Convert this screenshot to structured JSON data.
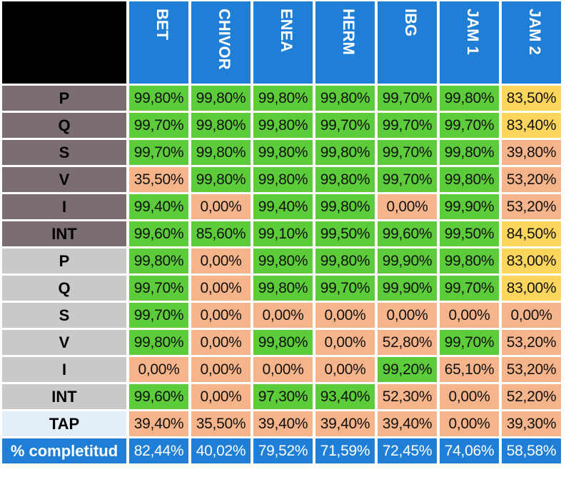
{
  "columns": [
    "BET",
    "CHIVOR",
    "ENEA",
    "HERM",
    "IBG",
    "JAM 1",
    "JAM 2"
  ],
  "colors": {
    "green": "#5ccc3a",
    "orange": "#f6b48b",
    "yellow": "#fcd65c",
    "blue": "#1f7fd6",
    "dark_label": "#7a6e70",
    "light_label": "#c9c9c9",
    "tap_label": "#e4eef8"
  },
  "rows": [
    {
      "label": "P",
      "group": "dark",
      "values": [
        "99,80%",
        "99,80%",
        "99,80%",
        "99,80%",
        "99,70%",
        "99,80%",
        "83,50%"
      ],
      "colors": [
        "g",
        "g",
        "g",
        "g",
        "g",
        "g",
        "y"
      ]
    },
    {
      "label": "Q",
      "group": "dark",
      "values": [
        "99,70%",
        "99,80%",
        "99,80%",
        "99,70%",
        "99,70%",
        "99,70%",
        "83,40%"
      ],
      "colors": [
        "g",
        "g",
        "g",
        "g",
        "g",
        "g",
        "y"
      ]
    },
    {
      "label": "S",
      "group": "dark",
      "values": [
        "99,70%",
        "99,80%",
        "99,80%",
        "99,80%",
        "99,70%",
        "99,80%",
        "39,80%"
      ],
      "colors": [
        "g",
        "g",
        "g",
        "g",
        "g",
        "g",
        "o"
      ]
    },
    {
      "label": "V",
      "group": "dark",
      "values": [
        "35,50%",
        "99,80%",
        "99,80%",
        "99,80%",
        "99,70%",
        "99,80%",
        "53,20%"
      ],
      "colors": [
        "o",
        "g",
        "g",
        "g",
        "g",
        "g",
        "o"
      ]
    },
    {
      "label": "I",
      "group": "dark",
      "values": [
        "99,40%",
        "0,00%",
        "99,40%",
        "99,80%",
        "0,00%",
        "99,90%",
        "53,20%"
      ],
      "colors": [
        "g",
        "o",
        "g",
        "g",
        "o",
        "g",
        "o"
      ]
    },
    {
      "label": "INT",
      "group": "dark",
      "values": [
        "99,60%",
        "85,60%",
        "99,10%",
        "99,50%",
        "99,60%",
        "99,50%",
        "84,50%"
      ],
      "colors": [
        "g",
        "g",
        "g",
        "g",
        "g",
        "g",
        "y"
      ]
    },
    {
      "label": "P",
      "group": "light",
      "values": [
        "99,80%",
        "0,00%",
        "99,80%",
        "99,80%",
        "99,90%",
        "99,80%",
        "83,00%"
      ],
      "colors": [
        "g",
        "o",
        "g",
        "g",
        "g",
        "g",
        "y"
      ]
    },
    {
      "label": "Q",
      "group": "light",
      "values": [
        "99,70%",
        "0,00%",
        "99,80%",
        "99,70%",
        "99,90%",
        "99,70%",
        "83,00%"
      ],
      "colors": [
        "g",
        "o",
        "g",
        "g",
        "g",
        "g",
        "y"
      ]
    },
    {
      "label": "S",
      "group": "light",
      "values": [
        "99,70%",
        "0,00%",
        "0,00%",
        "0,00%",
        "0,00%",
        "0,00%",
        "0,00%"
      ],
      "colors": [
        "g",
        "o",
        "o",
        "o",
        "o",
        "o",
        "o"
      ]
    },
    {
      "label": "V",
      "group": "light",
      "values": [
        "99,80%",
        "0,00%",
        "99,80%",
        "0,00%",
        "52,80%",
        "99,70%",
        "53,20%"
      ],
      "colors": [
        "g",
        "o",
        "g",
        "o",
        "o",
        "g",
        "o"
      ]
    },
    {
      "label": "I",
      "group": "light",
      "values": [
        "0,00%",
        "0,00%",
        "0,00%",
        "0,00%",
        "99,20%",
        "65,10%",
        "53,20%"
      ],
      "colors": [
        "o",
        "o",
        "o",
        "o",
        "g",
        "o",
        "o"
      ]
    },
    {
      "label": "INT",
      "group": "light",
      "values": [
        "99,60%",
        "0,00%",
        "97,30%",
        "93,40%",
        "52,30%",
        "0,00%",
        "52,20%"
      ],
      "colors": [
        "g",
        "o",
        "g",
        "g",
        "o",
        "o",
        "o"
      ]
    },
    {
      "label": "TAP",
      "group": "tap",
      "values": [
        "39,40%",
        "35,50%",
        "39,40%",
        "39,40%",
        "39,40%",
        "0,00%",
        "39,30%"
      ],
      "colors": [
        "o",
        "o",
        "o",
        "o",
        "o",
        "o",
        "o"
      ]
    },
    {
      "label": "% completitud",
      "group": "comp",
      "values": [
        "82,44%",
        "40,02%",
        "79,52%",
        "71,59%",
        "72,45%",
        "74,06%",
        "58,58%"
      ],
      "colors": [
        "b",
        "b",
        "b",
        "b",
        "b",
        "b",
        "b"
      ]
    }
  ]
}
